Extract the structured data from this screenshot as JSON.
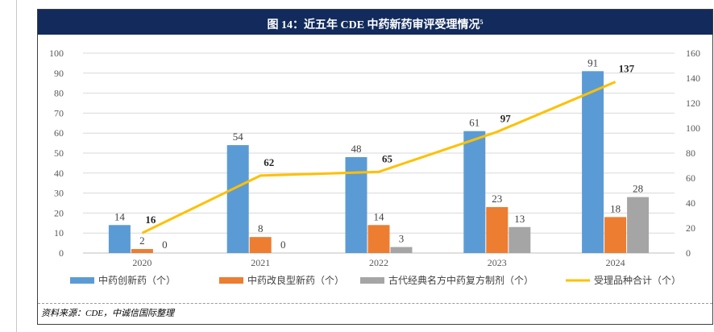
{
  "title": "图 14：近五年 CDE 中药新药审评受理情况",
  "title_note": "5",
  "source": "资料来源：CDE，中诚信国际整理",
  "chart_data": {
    "type": "bar",
    "categories": [
      "2020",
      "2021",
      "2022",
      "2023",
      "2024"
    ],
    "series": [
      {
        "name": "中药创新药（个）",
        "kind": "bar",
        "axis": "left",
        "color": "#5b9bd5",
        "values": [
          14,
          54,
          48,
          61,
          91
        ]
      },
      {
        "name": "中药改良型新药（个）",
        "kind": "bar",
        "axis": "left",
        "color": "#ed7d31",
        "values": [
          2,
          8,
          14,
          23,
          18
        ]
      },
      {
        "name": "古代经典名方中药复方制剂（个）",
        "kind": "bar",
        "axis": "left",
        "color": "#a5a5a5",
        "values": [
          0,
          0,
          3,
          13,
          28
        ]
      },
      {
        "name": "受理品种合计（个）",
        "kind": "line",
        "axis": "right",
        "color": "#ffc000",
        "values": [
          16,
          62,
          65,
          97,
          137
        ]
      }
    ],
    "left_axis": {
      "min": 0,
      "max": 100,
      "step": 10,
      "ticks": [
        "0",
        "10",
        "20",
        "30",
        "40",
        "50",
        "60",
        "70",
        "80",
        "90",
        "100"
      ]
    },
    "right_axis": {
      "min": 0,
      "max": 160,
      "step": 20,
      "ticks": [
        "0",
        "20",
        "40",
        "60",
        "80",
        "100",
        "120",
        "140",
        "160"
      ]
    },
    "grid": true,
    "legend": "bottom"
  }
}
